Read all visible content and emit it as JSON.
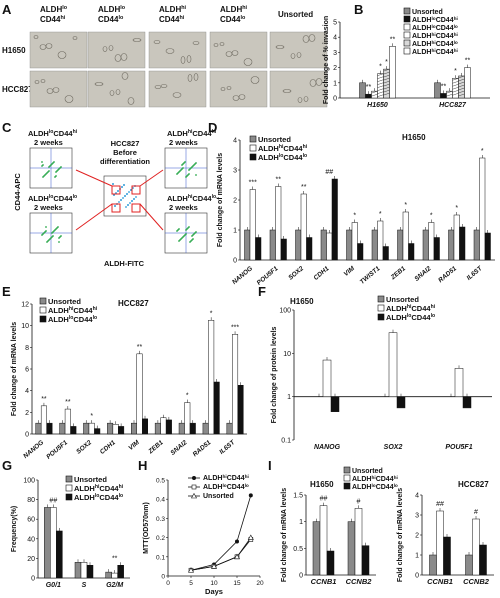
{
  "panel_letters": [
    "A",
    "B",
    "C",
    "D",
    "E",
    "F",
    "G",
    "H",
    "I"
  ],
  "panel_a": {
    "column_headers": [
      {
        "line1": "ALDH",
        "sup1": "lo",
        "line2": "CD44",
        "sup2": "hi"
      },
      {
        "line1": "ALDH",
        "sup1": "lo",
        "line2": "CD44",
        "sup2": "lo"
      },
      {
        "line1": "ALDH",
        "sup1": "hi",
        "line2": "CD44",
        "sup2": "hi"
      },
      {
        "line1": "ALDH",
        "sup1": "hi",
        "line2": "CD44",
        "sup2": "lo"
      },
      {
        "line1": "Unsorted",
        "sup1": "",
        "line2": "",
        "sup2": ""
      }
    ],
    "row_labels": [
      "H1650",
      "HCC827"
    ]
  },
  "panel_c": {
    "center_title": [
      "HCC827",
      "Before",
      "differentiation"
    ],
    "quadrant_labels": [
      {
        "base": "ALDH",
        "s1": "lo",
        "mid": "CD44",
        "s2": "hi",
        "weeks": "2 weeks"
      },
      {
        "base": "ALDH",
        "s1": "hi",
        "mid": "CD44",
        "s2": "hi",
        "weeks": "2 weeks"
      },
      {
        "base": "ALDH",
        "s1": "lo",
        "mid": "CD44",
        "s2": "lo",
        "weeks": "2 weeks"
      },
      {
        "base": "ALDH",
        "s1": "hi",
        "mid": "CD44",
        "s2": "lo",
        "weeks": "2 weeks"
      }
    ],
    "ylabel": "CD44-APC",
    "xlabel": "ALDH-FITC",
    "colors": {
      "red": "#e02020"
    }
  },
  "chart_data": [
    {
      "panel": "B",
      "type": "bar",
      "ylabel": "Fold change of % invasion",
      "ylim": [
        0,
        5
      ],
      "yticks": [
        0,
        1,
        2,
        3,
        4,
        5
      ],
      "groups": [
        "H1650",
        "HCC827"
      ],
      "series": [
        {
          "name": "Unsorted",
          "values": [
            1.0,
            1.0
          ],
          "stars": [
            "",
            ""
          ]
        },
        {
          "name": "ALDH^lo CD44^hi",
          "values": [
            0.25,
            0.3
          ],
          "stars": [
            "**",
            "**"
          ]
        },
        {
          "name": "ALDH^lo CD44^lo",
          "values": [
            0.45,
            0.45
          ],
          "stars": [
            "",
            ""
          ]
        },
        {
          "name": "ALDH^hi CD44^hi",
          "values": [
            1.6,
            1.3
          ],
          "stars": [
            "*",
            "*"
          ]
        },
        {
          "name": "ALDH^hi CD44^lo",
          "values": [
            1.9,
            1.45
          ],
          "stars": [
            "*",
            ""
          ]
        },
        {
          "name": "ALDH^hi CD44^hi",
          "values": [
            3.4,
            2.0
          ],
          "stars": [
            "**",
            "**"
          ]
        }
      ]
    },
    {
      "panel": "D",
      "type": "bar",
      "title": "H1650",
      "ylabel": "Fold change of mRNA levels",
      "ylim": [
        0,
        4
      ],
      "yticks": [
        0,
        1,
        2,
        3,
        4
      ],
      "categories": [
        "NANOG",
        "POU5F1",
        "SOX2",
        "CDH1",
        "VIM",
        "TWIST1",
        "ZEB1",
        "SNAI2",
        "RAD51",
        "IL6ST"
      ],
      "series": [
        {
          "name": "Unsorted",
          "values": [
            1,
            1,
            1,
            1,
            1,
            1,
            1,
            1,
            1,
            1
          ]
        },
        {
          "name": "ALDH^hi CD44^hi",
          "values": [
            2.35,
            2.45,
            2.2,
            0.9,
            1.25,
            1.3,
            1.6,
            1.25,
            1.5,
            3.4
          ]
        },
        {
          "name": "ALDH^lo CD44^lo",
          "values": [
            0.75,
            0.7,
            0.75,
            2.7,
            0.55,
            0.45,
            0.55,
            0.75,
            1.1,
            0.9
          ]
        }
      ],
      "annotations": [
        "***",
        "**",
        "**",
        "##",
        "*",
        "*",
        "*",
        "*",
        "*",
        "*"
      ]
    },
    {
      "panel": "E",
      "type": "bar",
      "title": "HCC827",
      "ylabel": "Fold change of mRNA levels",
      "ylim": [
        0,
        12
      ],
      "yticks": [
        0,
        2,
        4,
        6,
        8,
        10,
        12
      ],
      "categories": [
        "NANOG",
        "POU5F1",
        "SOX2",
        "CDH1",
        "VIM",
        "ZEB1",
        "SNAI2",
        "RAD51",
        "IL6ST"
      ],
      "series": [
        {
          "name": "Unsorted",
          "values": [
            1,
            1,
            1,
            1,
            1,
            1,
            1,
            1,
            1
          ]
        },
        {
          "name": "ALDH^hi CD44^hi",
          "values": [
            2.6,
            2.3,
            1.0,
            0.9,
            7.4,
            1.5,
            2.9,
            10.5,
            9.2
          ]
        },
        {
          "name": "ALDH^lo CD44^lo",
          "values": [
            1.0,
            0.7,
            0.5,
            0.7,
            1.4,
            1.3,
            1.0,
            4.8,
            4.5
          ]
        }
      ],
      "annotations": [
        "**",
        "**",
        "*",
        "",
        "**",
        "",
        "*",
        "*",
        "***"
      ]
    },
    {
      "panel": "F",
      "type": "bar",
      "title": "H1650",
      "ylabel": "Fold change of protein levels",
      "yscale": "log",
      "ylim": [
        0.1,
        100
      ],
      "yticks": [
        0.1,
        1,
        10,
        100
      ],
      "categories": [
        "NANOG",
        "SOX2",
        "POU5F1"
      ],
      "series": [
        {
          "name": "Unsorted",
          "values": [
            1,
            1,
            1
          ]
        },
        {
          "name": "ALDH^hi CD44^hi",
          "values": [
            7.0,
            30,
            4.5
          ]
        },
        {
          "name": "ALDH^lo CD44^lo",
          "values": [
            0.45,
            0.55,
            0.55
          ]
        }
      ]
    },
    {
      "panel": "G",
      "type": "bar",
      "ylabel": "Frequency(%)",
      "ylim": [
        0,
        100
      ],
      "yticks": [
        0,
        20,
        40,
        60,
        80,
        100
      ],
      "categories": [
        "G0/1",
        "S",
        "G2/M"
      ],
      "series": [
        {
          "name": "Unsorted",
          "values": [
            72,
            16,
            6
          ]
        },
        {
          "name": "ALDH^hi CD44^hi",
          "values": [
            72,
            16,
            5
          ]
        },
        {
          "name": "ALDH^lo CD44^lo",
          "values": [
            48,
            13,
            13
          ]
        }
      ],
      "annotations": [
        "##",
        "",
        "**"
      ]
    },
    {
      "panel": "H",
      "type": "line",
      "ylabel": "MTT(OD570nm)",
      "xlabel": "Days",
      "xlim": [
        0,
        20
      ],
      "xticks": [
        0,
        5,
        10,
        15,
        20
      ],
      "ylim": [
        0,
        0.5
      ],
      "yticks": [
        0,
        0.1,
        0.2,
        0.3,
        0.4,
        0.5
      ],
      "x": [
        5,
        10,
        15,
        18
      ],
      "series": [
        {
          "name": "ALDH^hi CD44^hi",
          "values": [
            0.03,
            0.06,
            0.18,
            0.42
          ]
        },
        {
          "name": "ALDH^lo CD44^lo",
          "values": [
            0.03,
            0.05,
            0.1,
            0.19
          ]
        },
        {
          "name": "Unsorted",
          "values": [
            0.03,
            0.05,
            0.1,
            0.2
          ]
        }
      ]
    },
    {
      "panel": "I-left",
      "type": "bar",
      "title": "H1650",
      "ylabel": "Fold change of mRNA levels",
      "ylim": [
        0,
        1.5
      ],
      "yticks": [
        0,
        0.5,
        1,
        1.5
      ],
      "categories": [
        "CCNB1",
        "CCNB2"
      ],
      "series": [
        {
          "name": "Unsorted",
          "values": [
            1,
            1
          ]
        },
        {
          "name": "ALDH^hi CD44^hi",
          "values": [
            1.3,
            1.25
          ]
        },
        {
          "name": "ALDH^lo CD44^lo",
          "values": [
            0.45,
            0.55
          ]
        }
      ],
      "annotations": [
        "##",
        "#"
      ]
    },
    {
      "panel": "I-right",
      "type": "bar",
      "title": "HCC827",
      "ylabel": "Fold change of mRNA levels",
      "ylim": [
        0,
        4
      ],
      "yticks": [
        0,
        1,
        2,
        3,
        4
      ],
      "categories": [
        "CCNB1",
        "CCNB2"
      ],
      "series": [
        {
          "name": "Unsorted",
          "values": [
            1,
            1
          ]
        },
        {
          "name": "ALDH^hi CD44^hi",
          "values": [
            3.2,
            2.8
          ]
        },
        {
          "name": "ALDH^lo CD44^lo",
          "values": [
            1.9,
            1.5
          ]
        }
      ],
      "annotations": [
        "##",
        "#"
      ]
    }
  ],
  "legend_labels": {
    "unsorted": "Unsorted",
    "hi_hi": {
      "base": "ALDH",
      "s1": "hi",
      "mid": "CD44",
      "s2": "hi"
    },
    "lo_lo": {
      "base": "ALDH",
      "s1": "lo",
      "mid": "CD44",
      "s2": "lo"
    },
    "lo_hi": {
      "base": "ALDH",
      "s1": "lo",
      "mid": "CD44",
      "s2": "hi"
    },
    "hi_lo": {
      "base": "ALDH",
      "s1": "hi",
      "mid": "CD44",
      "s2": "lo"
    }
  },
  "colors": {
    "unsorted": "#8a8a8a",
    "white": "#ffffff",
    "black": "#111111",
    "micro": "#c9c6bd"
  }
}
